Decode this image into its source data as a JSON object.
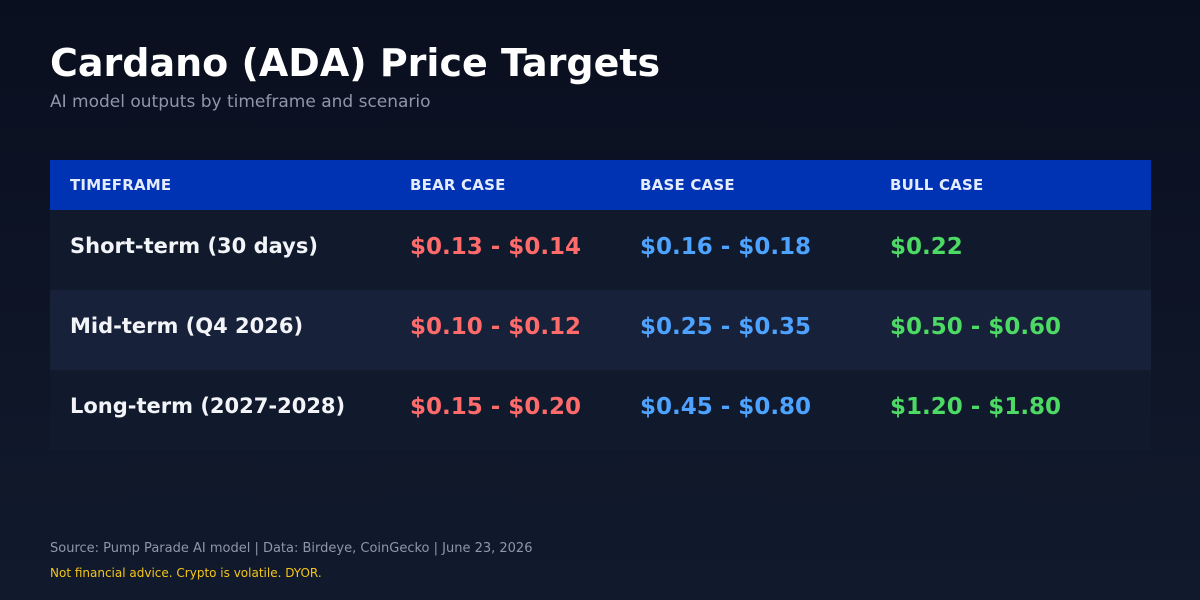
{
  "title": "Cardano (ADA) Price Targets",
  "subtitle": "AI model outputs by timeframe and scenario",
  "colors": {
    "header_bg": "#0033b3",
    "bear": "#ff6b6b",
    "base": "#4da3ff",
    "bull": "#4cd964",
    "disclaimer": "#f5c518"
  },
  "chart_data": {
    "type": "table",
    "columns": [
      "TIMEFRAME",
      "BEAR CASE",
      "BASE CASE",
      "BULL CASE"
    ],
    "rows": [
      {
        "timeframe": "Short-term (30 days)",
        "bear": "$0.13 - $0.14",
        "base": "$0.16 - $0.18",
        "bull": "$0.22"
      },
      {
        "timeframe": "Mid-term (Q4 2026)",
        "bear": "$0.10 - $0.12",
        "base": "$0.25 - $0.35",
        "bull": "$0.50 - $0.60"
      },
      {
        "timeframe": "Long-term (2027-2028)",
        "bear": "$0.15 - $0.20",
        "base": "$0.45 - $0.80",
        "bull": "$1.20 - $1.80"
      }
    ]
  },
  "footer": {
    "source": "Source: Pump Parade AI model | Data: Birdeye, CoinGecko | June 23, 2026",
    "disclaimer": "Not financial advice. Crypto is volatile. DYOR."
  }
}
